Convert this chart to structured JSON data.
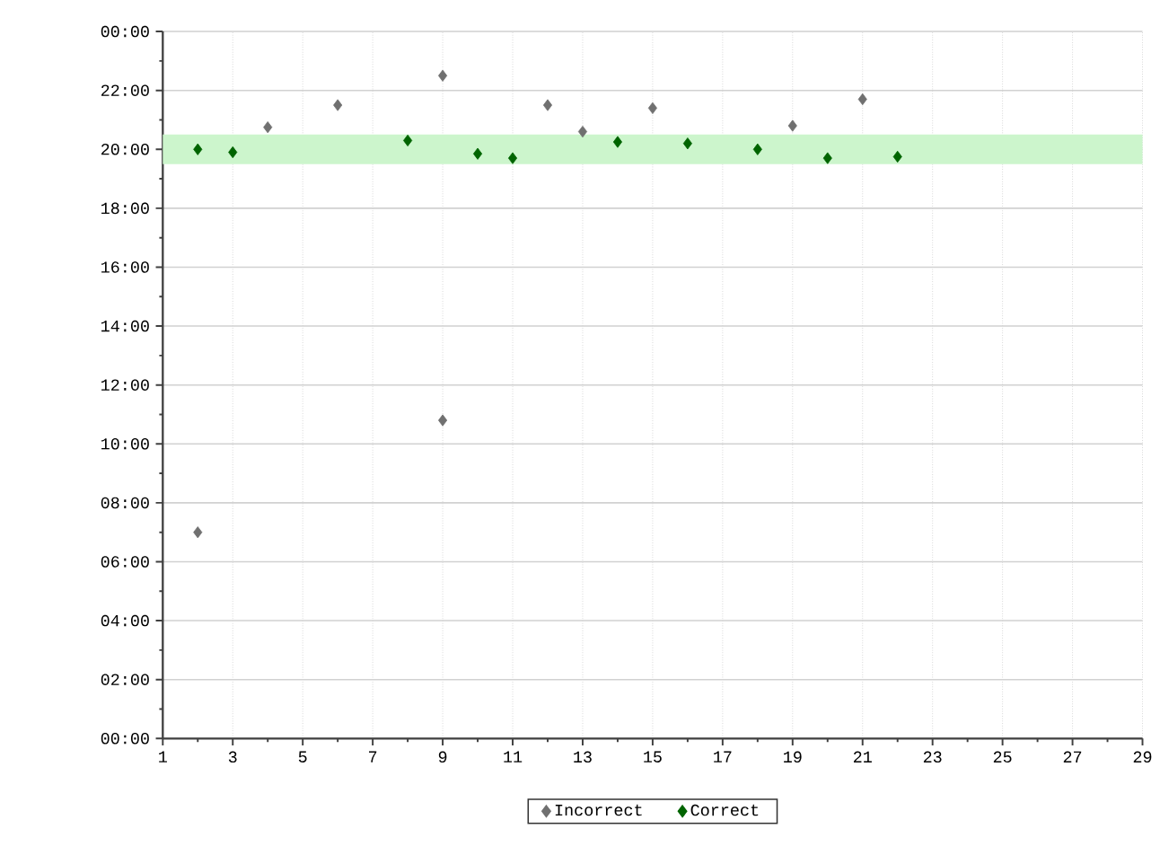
{
  "chart_data": {
    "type": "scatter",
    "marker": "diamond",
    "grid": true,
    "legend": "bottom",
    "xlim": [
      1,
      29
    ],
    "xticks": [
      1,
      3,
      5,
      7,
      9,
      11,
      13,
      15,
      17,
      19,
      21,
      23,
      25,
      27,
      29
    ],
    "ylim": [
      0,
      24
    ],
    "yticks": [
      {
        "value": 0,
        "label": "00:00"
      },
      {
        "value": 2,
        "label": "02:00"
      },
      {
        "value": 4,
        "label": "04:00"
      },
      {
        "value": 6,
        "label": "06:00"
      },
      {
        "value": 8,
        "label": "08:00"
      },
      {
        "value": 10,
        "label": "10:00"
      },
      {
        "value": 12,
        "label": "12:00"
      },
      {
        "value": 14,
        "label": "14:00"
      },
      {
        "value": 16,
        "label": "16:00"
      },
      {
        "value": 18,
        "label": "18:00"
      },
      {
        "value": 20,
        "label": "20:00"
      },
      {
        "value": 22,
        "label": "22:00"
      },
      {
        "value": 24,
        "label": "00:00"
      }
    ],
    "bands": [
      {
        "axis": "y",
        "from": 19.5,
        "to": 20.5,
        "color": "#ccf5cc"
      }
    ],
    "series": [
      {
        "name": "Incorrect",
        "color": "#707070",
        "x": [
          2,
          4,
          6,
          9,
          9,
          12,
          13,
          15,
          19,
          21
        ],
        "values": [
          7.0,
          20.75,
          21.5,
          22.5,
          10.8,
          21.5,
          20.6,
          21.4,
          20.8,
          21.7
        ]
      },
      {
        "name": "Correct",
        "color": "#006400",
        "x": [
          2,
          3,
          8,
          10,
          11,
          14,
          16,
          18,
          20,
          22
        ],
        "values": [
          20.0,
          19.9,
          20.3,
          19.85,
          19.7,
          20.25,
          20.2,
          20.0,
          19.7,
          19.75
        ]
      }
    ]
  }
}
